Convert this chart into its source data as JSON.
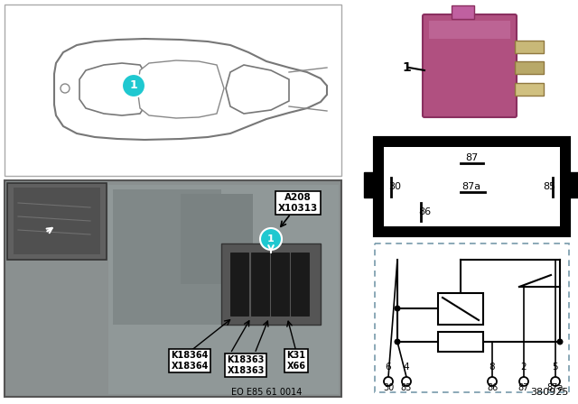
{
  "bg_color": "#ffffff",
  "diagram_number": "380925",
  "eo_number": "EO E85 61 0014",
  "cyan_color": "#1fc8d0",
  "relay_pink": "#b05080",
  "relay_dark": "#8a3060",
  "pin_labels": [
    "87",
    "87a",
    "85",
    "30",
    "86"
  ],
  "schematic_pins_top": [
    "6",
    "4",
    "8",
    "2",
    "5"
  ],
  "schematic_pins_bot": [
    "30",
    "85",
    "86",
    "87",
    "87a"
  ],
  "photo_bg": "#8a9090",
  "photo_bg2": "#707878",
  "inset_bg": "#606060"
}
